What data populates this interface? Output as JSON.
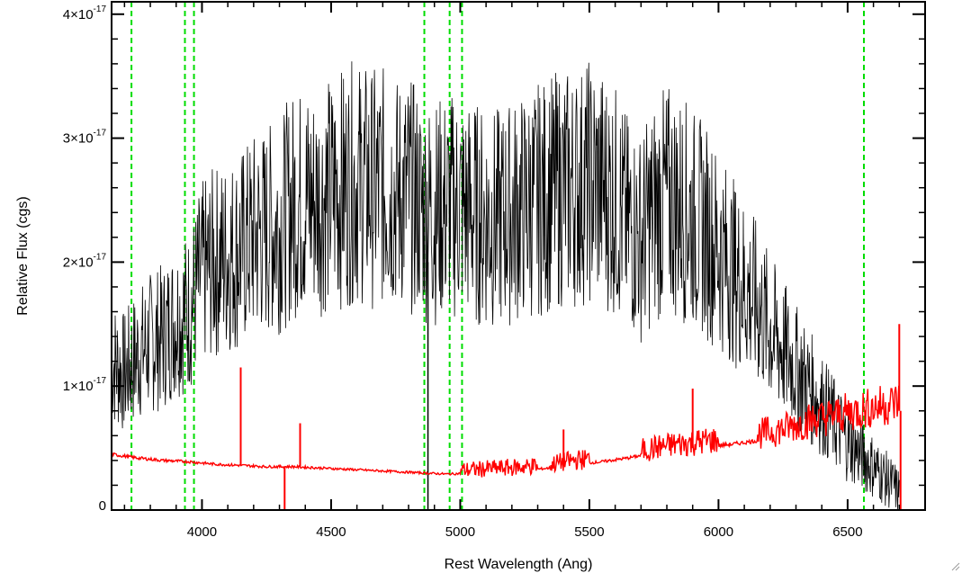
{
  "chart_data": {
    "type": "line",
    "title": "",
    "xlabel": "Rest Wavelength (Ang)",
    "ylabel": "Relative Flux (cgs)",
    "xlim": [
      3650,
      6800
    ],
    "ylim": [
      0,
      4.1e-17
    ],
    "x_ticks": [
      4000,
      4500,
      5000,
      5500,
      6000,
      6500
    ],
    "x_tick_labels": [
      "4000",
      "4500",
      "5000",
      "5500",
      "6000",
      "6500"
    ],
    "y_ticks": [
      0,
      1e-17,
      2e-17,
      3e-17,
      4e-17
    ],
    "y_tick_labels": [
      {
        "mant": "0",
        "exp": ""
      },
      {
        "mant": "1×10",
        "exp": "-17"
      },
      {
        "mant": "2×10",
        "exp": "-17"
      },
      {
        "mant": "3×10",
        "exp": "-17"
      },
      {
        "mant": "4×10",
        "exp": "-17"
      }
    ],
    "grid": false,
    "vertical_lines": {
      "color": "#00dd00",
      "style": "dashed",
      "x": [
        3727,
        3934,
        3969,
        4861,
        4959,
        5007,
        6563
      ]
    },
    "series": [
      {
        "color": "#000000",
        "x": [
          3650,
          3700,
          3750,
          3800,
          3850,
          3900,
          3950,
          4000,
          4050,
          4100,
          4150,
          4200,
          4250,
          4300,
          4350,
          4400,
          4450,
          4500,
          4550,
          4600,
          4650,
          4700,
          4750,
          4800,
          4850,
          4900,
          4950,
          5000,
          5050,
          5100,
          5150,
          5200,
          5250,
          5300,
          5350,
          5400,
          5450,
          5500,
          5550,
          5600,
          5650,
          5700,
          5750,
          5800,
          5850,
          5900,
          5950,
          6000,
          6050,
          6100,
          6150,
          6200,
          6250,
          6300,
          6350,
          6400,
          6450,
          6500,
          6550,
          6600,
          6650,
          6700
        ],
        "y": [
          1.2e-17,
          1.1e-17,
          1.25e-17,
          1.35e-17,
          1.4e-17,
          1.55e-17,
          1.6e-17,
          1.9e-17,
          2e-17,
          2.05e-17,
          2.1e-17,
          2.2e-17,
          2.25e-17,
          2.3e-17,
          2.45e-17,
          2.5e-17,
          2.5e-17,
          2.55e-17,
          2.6e-17,
          2.65e-17,
          2.6e-17,
          2.6e-17,
          2.55e-17,
          2.55e-17,
          2.45e-17,
          2.4e-17,
          2.45e-17,
          2.45e-17,
          2.4e-17,
          2.35e-17,
          2.35e-17,
          2.4e-17,
          2.45e-17,
          2.5e-17,
          2.55e-17,
          2.6e-17,
          2.6e-17,
          2.65e-17,
          2.6e-17,
          2.5e-17,
          2.3e-17,
          2.2e-17,
          2.4e-17,
          2.5e-17,
          2.45e-17,
          2.35e-17,
          2.25e-17,
          2.1e-17,
          1.95e-17,
          1.8e-17,
          1.65e-17,
          1.45e-17,
          1.3e-17,
          1.15e-17,
          1e-17,
          8.5e-18,
          7e-18,
          5.5e-18,
          4.5e-18,
          3.5e-18,
          2.5e-18,
          1.5e-18
        ]
      },
      {
        "color": "#ff0000",
        "x": [
          3650,
          3750,
          3850,
          3950,
          4050,
          4150,
          4250,
          4350,
          4450,
          4550,
          4650,
          4750,
          4850,
          4950,
          5050,
          5150,
          5250,
          5350,
          5450,
          5550,
          5650,
          5750,
          5850,
          5950,
          6050,
          6150,
          6250,
          6350,
          6450,
          6550,
          6650,
          6700
        ],
        "y": [
          4.5e-18,
          4.2e-18,
          4e-18,
          3.9e-18,
          3.7e-18,
          3.6e-18,
          3.5e-18,
          3.5e-18,
          3.4e-18,
          3.3e-18,
          3.2e-18,
          3.1e-18,
          3e-18,
          2.9e-18,
          3e-18,
          3.1e-18,
          3.2e-18,
          3.4e-18,
          3.7e-18,
          3.9e-18,
          4.2e-18,
          4.6e-18,
          4.9e-18,
          5.1e-18,
          5.3e-18,
          5.6e-18,
          6e-18,
          6.6e-18,
          7e-18,
          7.4e-18,
          7.8e-18,
          8e-18
        ]
      }
    ],
    "emission_spikes": [
      {
        "x": 4150,
        "y": 1.15e-17
      },
      {
        "x": 4380,
        "y": 7e-18
      },
      {
        "x": 5400,
        "y": 6.5e-18
      },
      {
        "x": 5900,
        "y": 9.8e-18
      },
      {
        "x": 6700,
        "y": 1.5e-17
      }
    ],
    "absorption_lines": [
      {
        "x": 4320,
        "ymin": 0,
        "ymax": 3.5e-18
      },
      {
        "x": 4875,
        "ymin": 0,
        "ymax": 2e-17
      }
    ]
  }
}
